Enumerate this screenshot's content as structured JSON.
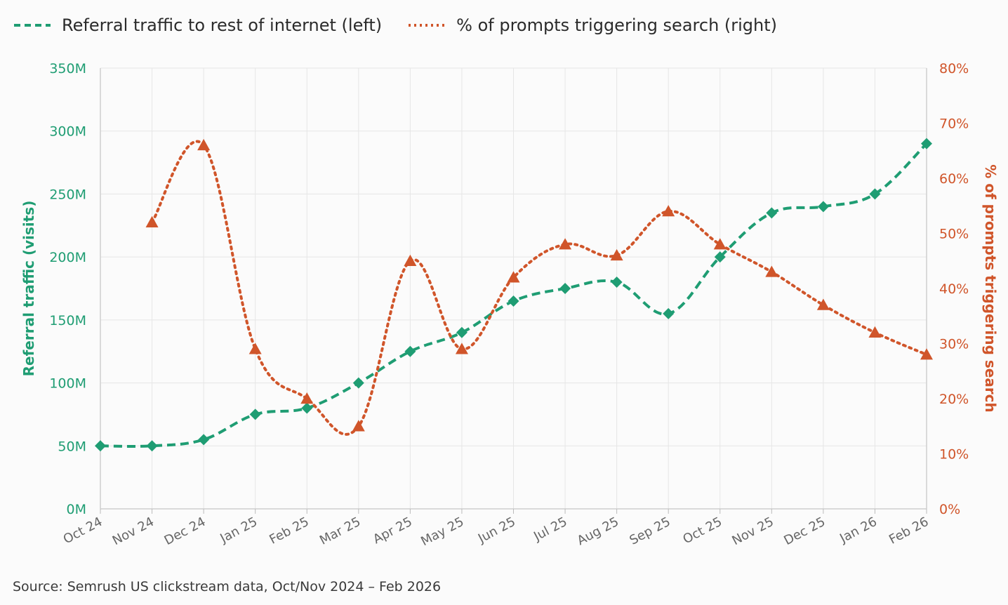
{
  "legend": {
    "series1_label": "Referral traffic to rest of internet (left)",
    "series2_label": "% of prompts triggering search (right)"
  },
  "source": "Source: Semrush US clickstream data, Oct/Nov 2024 – Feb 2026",
  "colors": {
    "green": "#1f9d73",
    "orange": "#d0552a",
    "grid": "#e6e6e6"
  },
  "chart_data": {
    "type": "line",
    "categories": [
      "Oct 24",
      "Nov 24",
      "Dec 24",
      "Jan 25",
      "Feb 25",
      "Mar 25",
      "Apr 25",
      "May 25",
      "Jun 25",
      "Jul 25",
      "Aug 25",
      "Sep 25",
      "Oct 25",
      "Nov 25",
      "Dec 25",
      "Jan 26",
      "Feb 26"
    ],
    "series": [
      {
        "name": "Referral traffic to rest of internet (left)",
        "axis": "left",
        "style": "dashed",
        "marker": "diamond",
        "values": [
          50,
          50,
          55,
          75,
          80,
          100,
          125,
          140,
          165,
          175,
          180,
          155,
          200,
          235,
          240,
          250,
          290
        ]
      },
      {
        "name": "% of prompts triggering search (right)",
        "axis": "right",
        "style": "dotted",
        "marker": "triangle",
        "values": [
          null,
          52,
          66,
          29,
          20,
          15,
          45,
          29,
          42,
          48,
          46,
          54,
          48,
          43,
          37,
          32,
          28
        ]
      }
    ],
    "ylabel_left": "Referral traffic (visits)",
    "ylabel_right": "% of prompts triggering search",
    "ylim_left": [
      0,
      350
    ],
    "ylim_right": [
      0,
      80
    ],
    "yticks_left": [
      "0M",
      "50M",
      "100M",
      "150M",
      "200M",
      "250M",
      "300M",
      "350M"
    ],
    "yticks_right": [
      "0%",
      "10%",
      "20%",
      "30%",
      "40%",
      "50%",
      "60%",
      "70%",
      "80%"
    ],
    "grid": true,
    "legend_position": "top-left"
  }
}
